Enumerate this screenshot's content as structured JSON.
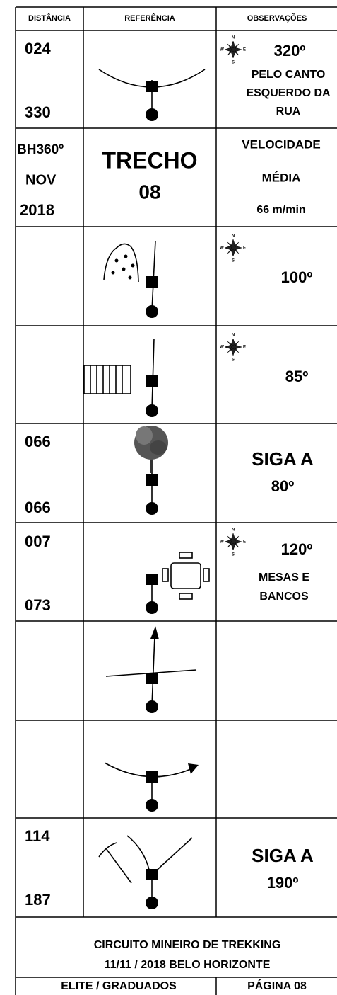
{
  "header": [
    "DISTÂNCIA",
    "REFERÊNCIA",
    "OBSERVAÇÕES"
  ],
  "compass": [
    "N",
    "S",
    "W",
    "E"
  ],
  "rows": [
    {
      "distance": [
        "024",
        "330"
      ],
      "observations": [
        "320º",
        "PELO CANTO",
        "ESQUERDO DA",
        "RUA"
      ]
    },
    {
      "distance": [
        "BH360º",
        "NOV",
        "2018"
      ],
      "reference": [
        "TRECHO",
        "08"
      ],
      "observations": [
        "VELOCIDADE",
        "MÉDIA",
        "66 m/min"
      ]
    },
    {
      "observations": [
        "100º"
      ]
    },
    {
      "observations": [
        "85º"
      ]
    },
    {
      "distance": [
        "066",
        "066"
      ],
      "observations": [
        "SIGA A",
        "80º"
      ]
    },
    {
      "distance": [
        "007",
        "073"
      ],
      "observations": [
        "120º",
        "MESAS E",
        "BANCOS"
      ]
    },
    {},
    {},
    {
      "distance": [
        "114",
        "187"
      ],
      "observations": [
        "SIGA A",
        "190º"
      ]
    }
  ],
  "footer": {
    "lines": [
      "CIRCUITO MINEIRO DE TREKKING",
      "11/11 / 2018  BELO HORIZONTE"
    ],
    "bottom": [
      "ELITE / GRADUADOS",
      "PÁGINA 08"
    ]
  }
}
